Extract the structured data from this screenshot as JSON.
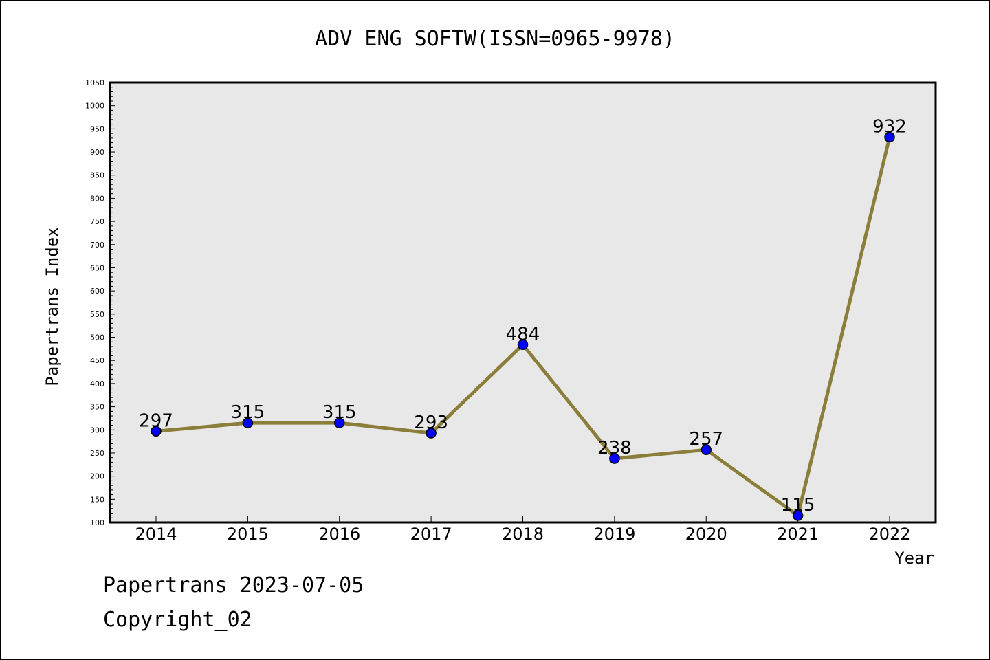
{
  "chart_data": {
    "type": "line",
    "title": "ADV ENG SOFTW(ISSN=0965-9978)",
    "xlabel": "Year",
    "ylabel": "Papertrans Index",
    "categories": [
      "2014",
      "2015",
      "2016",
      "2017",
      "2018",
      "2019",
      "2020",
      "2021",
      "2022"
    ],
    "series": [
      {
        "values": [
          297,
          315,
          315,
          293,
          484,
          238,
          257,
          115,
          932
        ]
      }
    ],
    "ylim": [
      100,
      1050
    ],
    "y_major_ticks": [
      100,
      150,
      200,
      250,
      300,
      350,
      400,
      450,
      500,
      550,
      600,
      650,
      700,
      750,
      800,
      850,
      900,
      950,
      1000,
      1050
    ],
    "y_minor_step": 10,
    "grid": false,
    "data_labels": true,
    "colors": {
      "plot_background": "#e8e8e8",
      "line": "#8b7d3a",
      "marker": "#0000ff"
    }
  },
  "footer": {
    "date_line": "Papertrans 2023-07-05",
    "copyright_line": "Copyright_02"
  }
}
